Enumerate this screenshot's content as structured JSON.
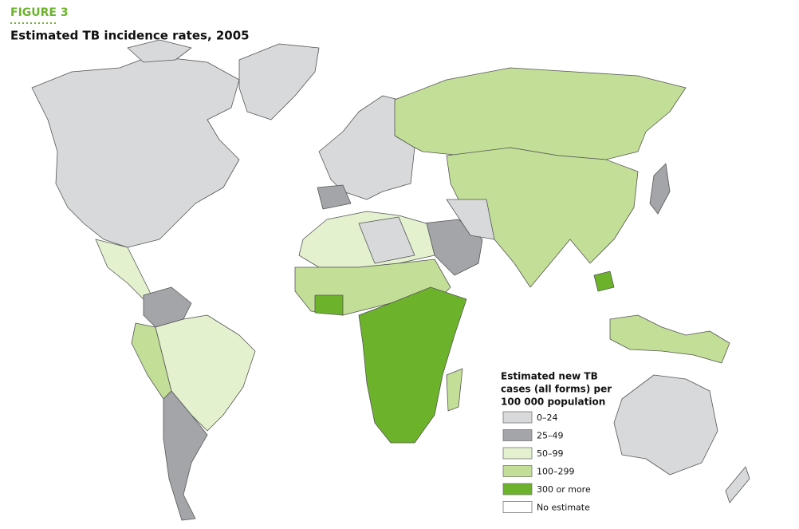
{
  "header": {
    "figure": "FIGURE 3",
    "title": "Estimated TB incidence rates, 2005"
  },
  "legend": {
    "title_lines": [
      "Estimated new TB",
      "cases (all forms) per",
      "100 000 population"
    ],
    "items": [
      {
        "label": "0–24",
        "color": "#d8d9db"
      },
      {
        "label": "25–49",
        "color": "#a4a5a8"
      },
      {
        "label": "50–99",
        "color": "#e4f1cf"
      },
      {
        "label": "100–299",
        "color": "#c2de97"
      },
      {
        "label": "300 or more",
        "color": "#6cb32b"
      },
      {
        "label": "No estimate",
        "color": "#ffffff"
      }
    ]
  }
}
